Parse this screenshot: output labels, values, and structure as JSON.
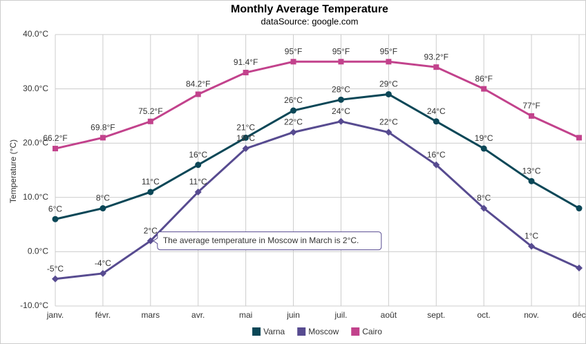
{
  "chart_data": {
    "type": "line",
    "title": "Monthly Average Temperature",
    "subtitle": "dataSource: google.com",
    "y_label": "Temperature (°C)",
    "categories": [
      "janv.",
      "févr.",
      "mars",
      "avr.",
      "mai",
      "juin",
      "juil.",
      "août",
      "sept.",
      "oct.",
      "nov.",
      "déc"
    ],
    "ylim": [
      -10,
      40
    ],
    "yticks": [
      {
        "value": -10,
        "label": "-10.0°C"
      },
      {
        "value": 0,
        "label": "0.0°C"
      },
      {
        "value": 10,
        "label": "10.0°C"
      },
      {
        "value": 20,
        "label": "20.0°C"
      },
      {
        "value": 30,
        "label": "30.0°C"
      },
      {
        "value": 40,
        "label": "40.0°C"
      }
    ],
    "grid": true,
    "legend": "bottom",
    "annotation": "The average temperature in Moscow in March is 2°C.",
    "series": [
      {
        "name": "Varna",
        "color": "#0b4757",
        "marker": "circle",
        "values": [
          6,
          8,
          11,
          16,
          21,
          26,
          28,
          29,
          24,
          19,
          13,
          8
        ],
        "value_labels": [
          "6°C",
          "8°C",
          "11°C",
          "16°C",
          "21°C",
          "26°C",
          "28°C",
          "29°C",
          "24°C",
          "19°C",
          "13°C",
          null
        ]
      },
      {
        "name": "Moscow",
        "color": "#574b90",
        "marker": "diamond",
        "values": [
          -5,
          -4,
          2,
          11,
          19,
          22,
          24,
          22,
          16,
          8,
          1,
          -3
        ],
        "value_labels": [
          "-5°C",
          "-4°C",
          "2°C",
          "11°C",
          "19°C",
          "22°C",
          "24°C",
          "22°C",
          "16°C",
          "8°C",
          "1°C",
          null
        ]
      },
      {
        "name": "Cairo",
        "color": "#c2428c",
        "marker": "square",
        "values": [
          19,
          21,
          24,
          29,
          33,
          35,
          35,
          35,
          34,
          30,
          25,
          21
        ],
        "value_labels": [
          "66.2°F",
          "69.8°F",
          "75.2°F",
          "84.2°F",
          "91.4°F",
          "95°F",
          "95°F",
          "95°F",
          "93.2°F",
          "86°F",
          "77°F",
          null
        ]
      }
    ]
  }
}
